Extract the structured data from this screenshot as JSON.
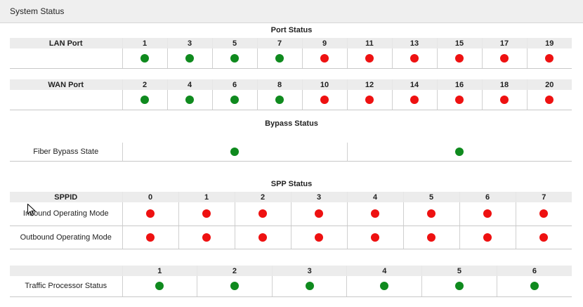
{
  "window": {
    "title": "System Status"
  },
  "colors": {
    "up": "#0f8a1e",
    "down": "#ee1111"
  },
  "port_status": {
    "title": "Port Status",
    "lan": {
      "label": "LAN Port",
      "ports": [
        {
          "num": "1",
          "status": "up"
        },
        {
          "num": "3",
          "status": "up"
        },
        {
          "num": "5",
          "status": "up"
        },
        {
          "num": "7",
          "status": "up"
        },
        {
          "num": "9",
          "status": "down"
        },
        {
          "num": "11",
          "status": "down"
        },
        {
          "num": "13",
          "status": "down"
        },
        {
          "num": "15",
          "status": "down"
        },
        {
          "num": "17",
          "status": "down"
        },
        {
          "num": "19",
          "status": "down"
        }
      ]
    },
    "wan": {
      "label": "WAN Port",
      "ports": [
        {
          "num": "2",
          "status": "up"
        },
        {
          "num": "4",
          "status": "up"
        },
        {
          "num": "6",
          "status": "up"
        },
        {
          "num": "8",
          "status": "up"
        },
        {
          "num": "10",
          "status": "down"
        },
        {
          "num": "12",
          "status": "down"
        },
        {
          "num": "14",
          "status": "down"
        },
        {
          "num": "16",
          "status": "down"
        },
        {
          "num": "18",
          "status": "down"
        },
        {
          "num": "20",
          "status": "down"
        }
      ]
    }
  },
  "bypass_status": {
    "title": "Bypass Status",
    "label": "Fiber Bypass State",
    "states": [
      "up",
      "up"
    ]
  },
  "spp_status": {
    "title": "SPP Status",
    "header_label": "SPPID",
    "ids": [
      "0",
      "1",
      "2",
      "3",
      "4",
      "5",
      "6",
      "7"
    ],
    "rows": [
      {
        "label": "Inbound Operating Mode",
        "states": [
          "down",
          "down",
          "down",
          "down",
          "down",
          "down",
          "down",
          "down"
        ]
      },
      {
        "label": "Outbound Operating Mode",
        "states": [
          "down",
          "down",
          "down",
          "down",
          "down",
          "down",
          "down",
          "down"
        ]
      }
    ]
  },
  "traffic_processor": {
    "label": "Traffic Processor Status",
    "ids": [
      "1",
      "2",
      "3",
      "4",
      "5",
      "6"
    ],
    "states": [
      "up",
      "up",
      "up",
      "up",
      "up",
      "up"
    ]
  }
}
